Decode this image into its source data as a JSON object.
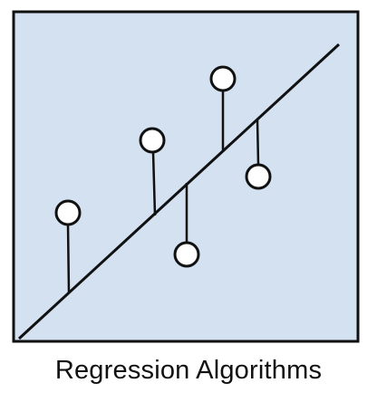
{
  "caption": "Regression Algorithms",
  "colors": {
    "panel_fill": "#d3e1f1",
    "stroke": "#111111",
    "marker_fill": "#ffffff"
  }
}
